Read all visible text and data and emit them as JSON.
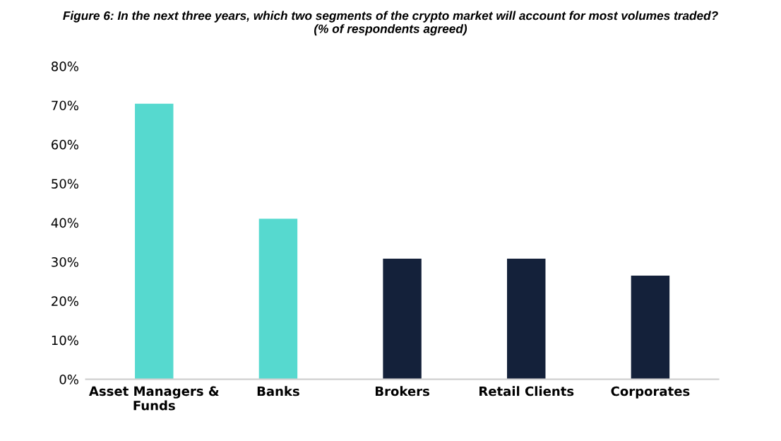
{
  "chart_data": {
    "type": "bar",
    "title": "Figure 6: In the next three years, which two segments of the crypto market will account for most volumes traded?\n(% of respondents agreed)",
    "categories": [
      "Asset Managers &\nFunds",
      "Banks",
      "Brokers",
      "Retail Clients",
      "Corporates"
    ],
    "values": [
      70.4,
      41,
      30.8,
      30.8,
      26.5
    ],
    "colors": [
      "#56d9cf",
      "#56d9cf",
      "#14213a",
      "#14213a",
      "#14213a"
    ],
    "ylim": [
      0,
      80
    ],
    "yticks": [
      {
        "value": 0,
        "label": "0%"
      },
      {
        "value": 10,
        "label": "10%"
      },
      {
        "value": 20,
        "label": "20%"
      },
      {
        "value": 30,
        "label": "30%"
      },
      {
        "value": 40,
        "label": "40%"
      },
      {
        "value": 50,
        "label": "50%"
      },
      {
        "value": 60,
        "label": "60%"
      },
      {
        "value": 70,
        "label": "70%"
      },
      {
        "value": 80,
        "label": "80%"
      }
    ],
    "grid": false
  }
}
